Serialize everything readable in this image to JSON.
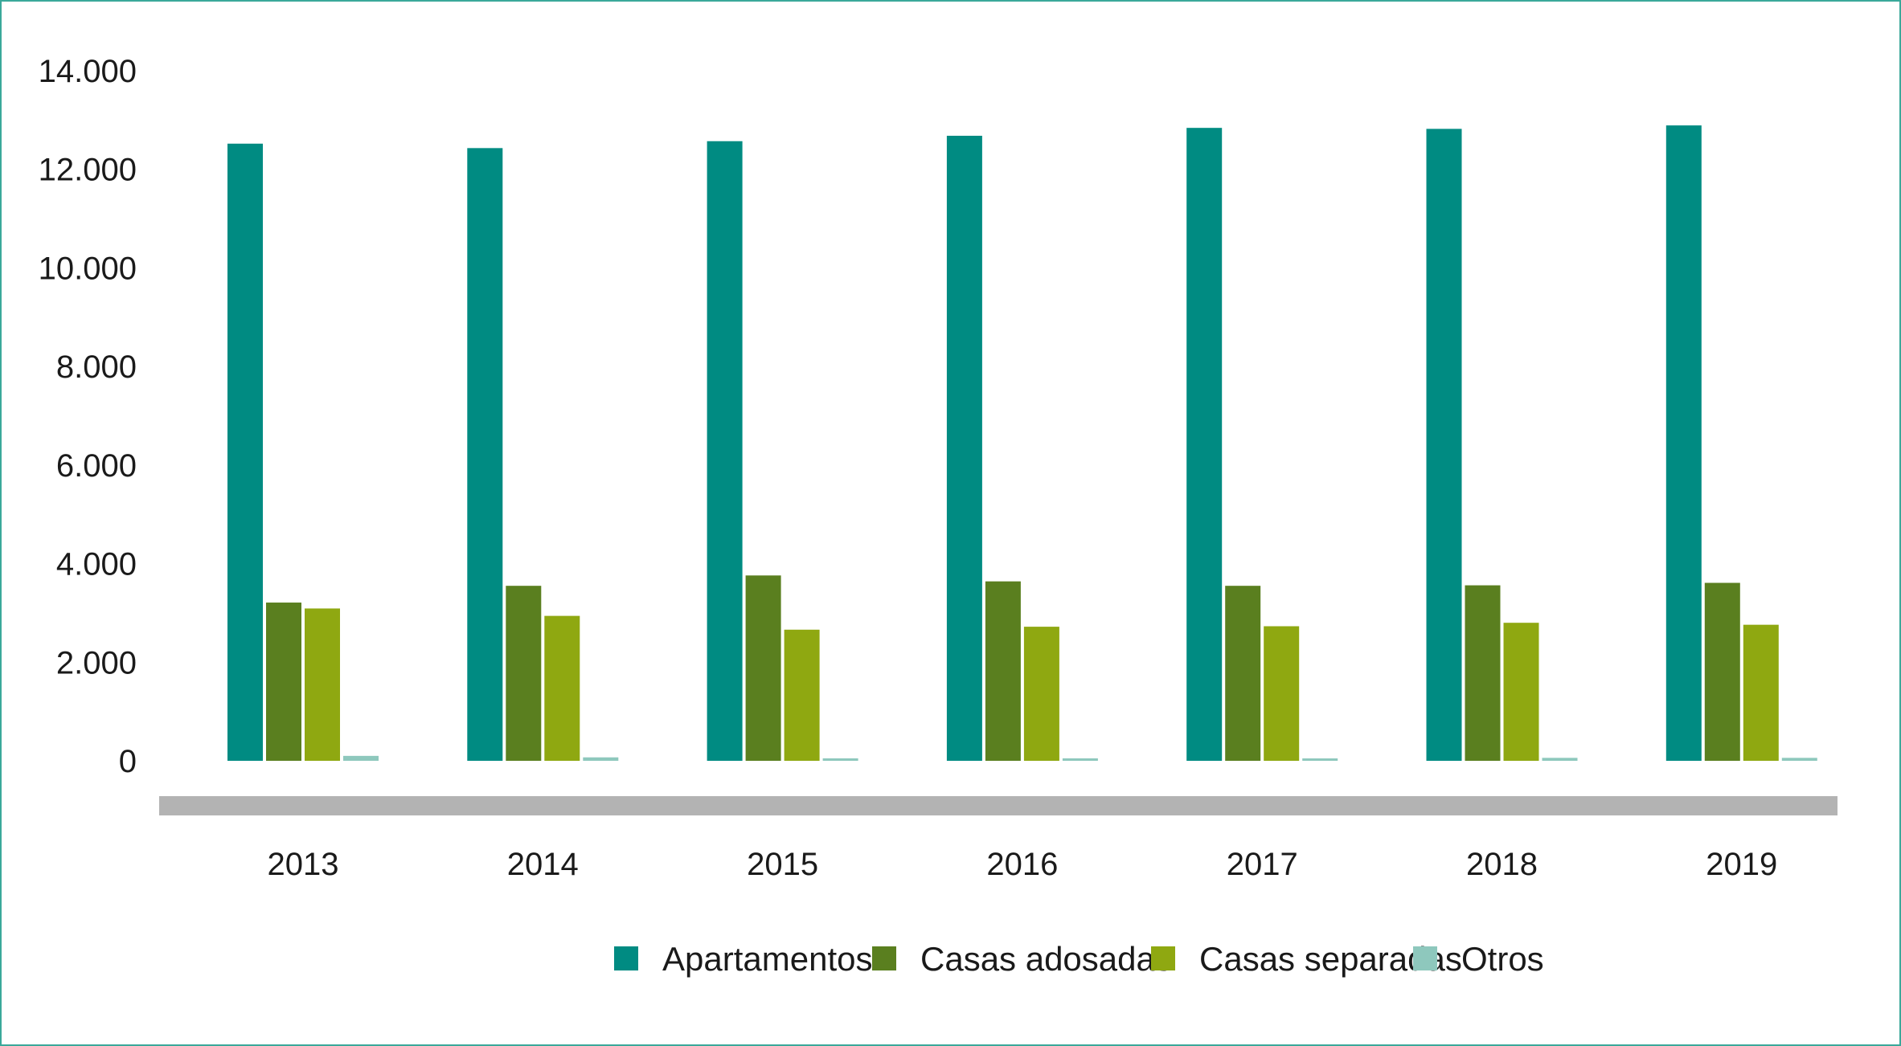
{
  "chart_data": {
    "type": "bar",
    "title": "",
    "xlabel": "",
    "ylabel": "",
    "categories": [
      "2013",
      "2014",
      "2015",
      "2016",
      "2017",
      "2018",
      "2019"
    ],
    "series": [
      {
        "name": "Apartamentos",
        "color": "#008b82",
        "values": [
          12520,
          12430,
          12570,
          12680,
          12840,
          12820,
          12890
        ]
      },
      {
        "name": "Casas adosadas",
        "color": "#5a7f1f",
        "values": [
          3210,
          3550,
          3760,
          3640,
          3550,
          3560,
          3610
        ]
      },
      {
        "name": "Casas separadas",
        "color": "#8fa811",
        "values": [
          3090,
          2940,
          2660,
          2720,
          2730,
          2800,
          2760
        ]
      },
      {
        "name": "Otros",
        "color": "#8ec8bd",
        "values": [
          100,
          70,
          50,
          50,
          40,
          60,
          60
        ]
      }
    ],
    "yticks": [
      "0",
      "2.000",
      "4.000",
      "6.000",
      "8.000",
      "10.000",
      "12.000",
      "14.000"
    ],
    "ylim": [
      0,
      14000
    ],
    "grid": false,
    "legend_position": "bottom"
  }
}
